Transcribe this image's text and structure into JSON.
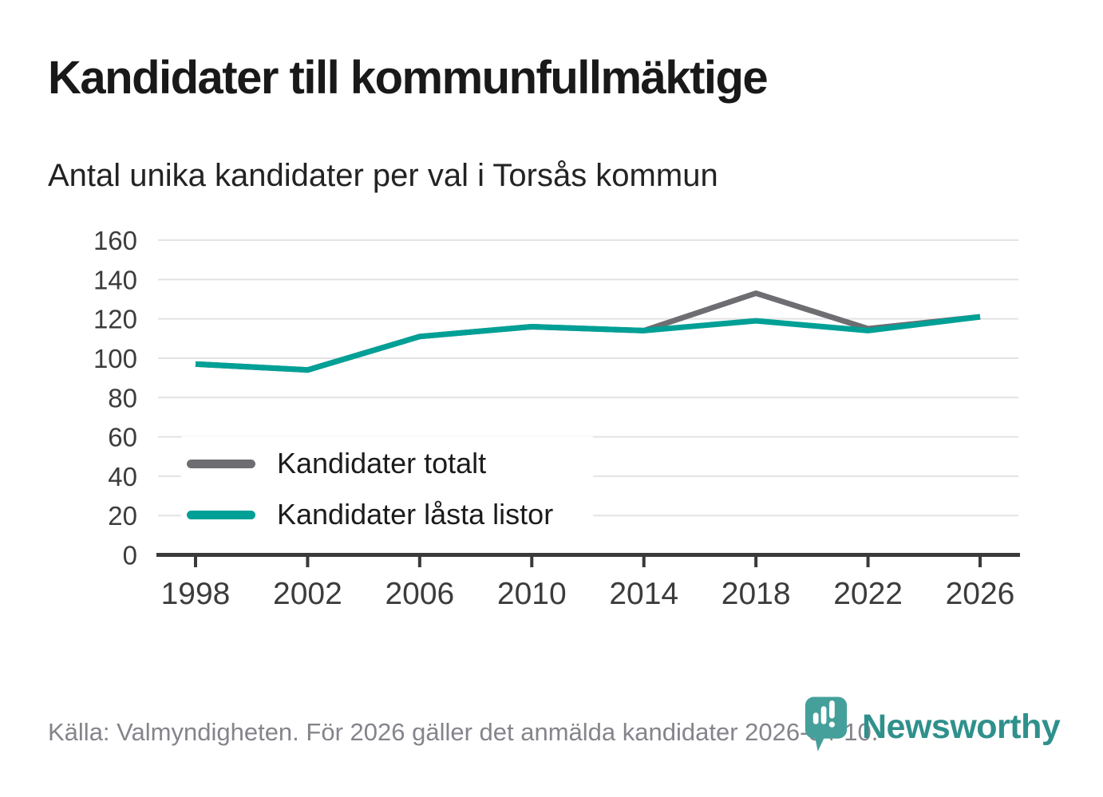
{
  "header": {
    "title": "Kandidater till kommunfullmäktige",
    "subtitle": "Antal unika kandidater per val i Torsås kommun"
  },
  "chart_data": {
    "type": "line",
    "x": [
      1998,
      2002,
      2006,
      2010,
      2014,
      2018,
      2022,
      2026
    ],
    "xticks": [
      1998,
      2002,
      2006,
      2010,
      2014,
      2018,
      2022,
      2026
    ],
    "series": [
      {
        "name": "Kandidater totalt",
        "color": "#6e6d72",
        "values": [
          97,
          94,
          111,
          116,
          114,
          133,
          115,
          121
        ]
      },
      {
        "name": "Kandidater låsta listor",
        "color": "#00a096",
        "values": [
          97,
          94,
          111,
          116,
          114,
          119,
          114,
          121
        ]
      }
    ],
    "ylim": [
      0,
      160
    ],
    "yticks": [
      0,
      20,
      40,
      60,
      80,
      100,
      120,
      140,
      160
    ],
    "grid": "horizontal",
    "legend_position": "inside-left-bottom",
    "axis_color": "#3a3a3a",
    "grid_color": "#e3e3e3",
    "tick_label_color": "#3c3c3c"
  },
  "footer": {
    "source": "Källa: Valmyndigheten. För 2026 gäller det anmälda kandidater 2026-04-10."
  },
  "branding": {
    "logo_text": "Newsworthy",
    "logo_text_color": "#2f908c",
    "pin_color": "#45a09b"
  }
}
